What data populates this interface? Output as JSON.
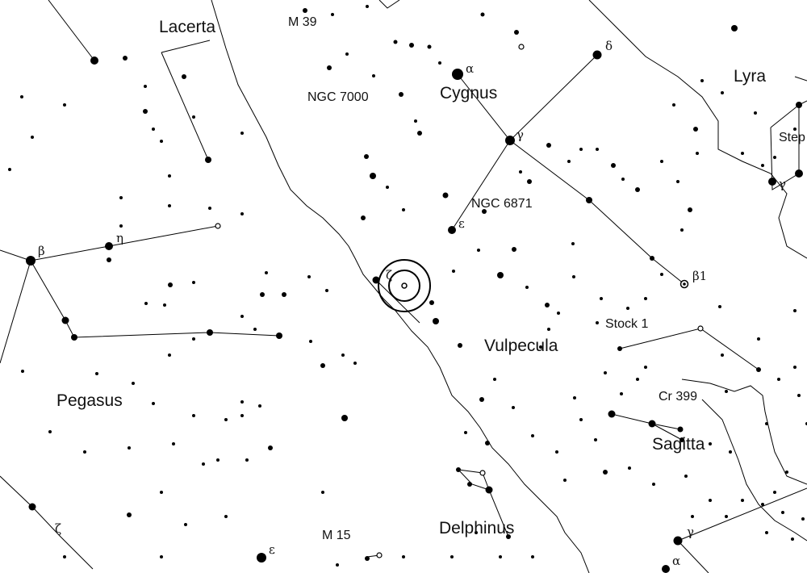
{
  "constellations": [
    {
      "id": "lacerta",
      "name": "Lacerta"
    },
    {
      "id": "cygnus",
      "name": "Cygnus"
    },
    {
      "id": "lyra",
      "name": "Lyra"
    },
    {
      "id": "vulpecula",
      "name": "Vulpecula"
    },
    {
      "id": "pegasus",
      "name": "Pegasus"
    },
    {
      "id": "sagitta",
      "name": "Sagitta"
    },
    {
      "id": "delphinus",
      "name": "Delphinus"
    }
  ],
  "deep_sky_objects": [
    {
      "id": "m39",
      "name": "M 39"
    },
    {
      "id": "ngc7000",
      "name": "NGC 7000"
    },
    {
      "id": "ngc6871",
      "name": "NGC 6871"
    },
    {
      "id": "stock1",
      "name": "Stock 1"
    },
    {
      "id": "cr399",
      "name": "Cr 399"
    },
    {
      "id": "m15",
      "name": "M 15"
    },
    {
      "id": "stephenson1",
      "name": "Step"
    }
  ],
  "star_labels": {
    "alpha_cyg": "α",
    "gamma_cyg": "γ",
    "delta_cyg": "δ",
    "epsilon_cyg": "ε",
    "zeta_cyg": "ζ",
    "beta1_cyg": "β1",
    "beta_peg": "β",
    "eta_peg": "η",
    "zeta_peg": "ζ",
    "epsilon_peg": "ε",
    "gamma_sge": "γ",
    "alpha_sge": "α",
    "gamma_lyr": "γ"
  },
  "colors": {
    "ink": "#000000",
    "background": "#ffffff"
  }
}
